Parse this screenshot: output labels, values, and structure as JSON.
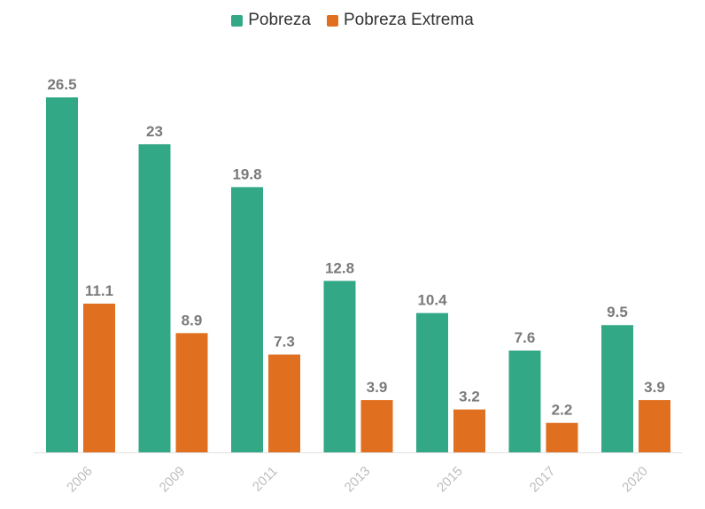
{
  "chart_data": {
    "type": "bar",
    "categories": [
      "2006",
      "2009",
      "2011",
      "2013",
      "2015",
      "2017",
      "2020"
    ],
    "series": [
      {
        "name": "Pobreza",
        "color": "#33a886",
        "values": [
          26.5,
          23,
          19.8,
          12.8,
          10.4,
          7.6,
          9.5
        ]
      },
      {
        "name": "Pobreza Extrema",
        "color": "#e06f1f",
        "values": [
          11.1,
          8.9,
          7.3,
          3.9,
          3.2,
          2.2,
          3.9
        ]
      }
    ],
    "ylim": [
      0,
      26.5
    ],
    "legend": "top-center",
    "grid": false
  }
}
